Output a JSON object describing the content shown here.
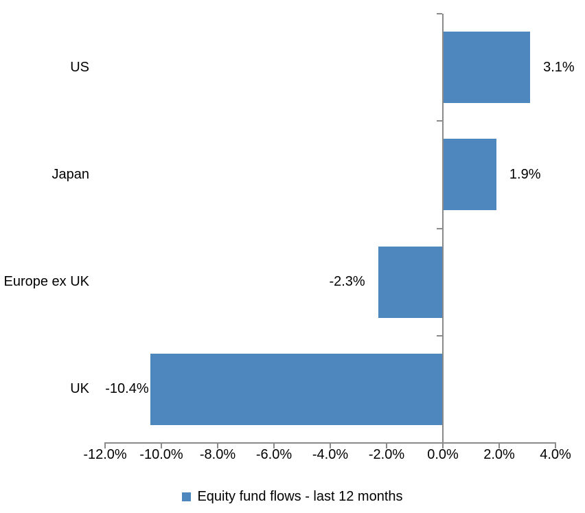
{
  "chart_data": {
    "type": "bar",
    "orientation": "horizontal",
    "title": "",
    "categories": [
      "US",
      "Japan",
      "Europe ex UK",
      "UK"
    ],
    "series": [
      {
        "name": "Equity fund flows - last 12 months",
        "values": [
          3.1,
          1.9,
          -2.3,
          -10.4
        ],
        "value_labels": [
          "3.1%",
          "1.9%",
          "-2.3%",
          "-10.4%"
        ]
      }
    ],
    "xlabel": "",
    "ylabel": "",
    "xlim": [
      -12,
      4
    ],
    "x_tick_values": [
      -12,
      -10,
      -8,
      -6,
      -4,
      -2,
      0,
      2,
      4
    ],
    "x_tick_labels": [
      "-12.0%",
      "-10.0%",
      "-8.0%",
      "-6.0%",
      "-4.0%",
      "-2.0%",
      "0.0%",
      "2.0%",
      "4.0%"
    ],
    "grid": false,
    "legend": {
      "position": "bottom",
      "label": "Equity fund flows - last 12 months"
    },
    "colors": {
      "bar": "#4E87BE",
      "axis": "#8A8A8A",
      "text": "#000000",
      "background": "#FFFFFF"
    }
  }
}
